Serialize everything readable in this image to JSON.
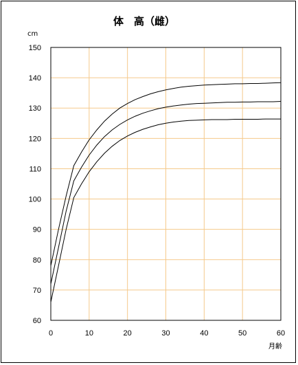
{
  "chart_data": {
    "type": "line",
    "title": "体　高（雌）",
    "ylabel": "cm",
    "xlabel": "月齢",
    "xlim": [
      0,
      60
    ],
    "ylim": [
      60,
      150
    ],
    "xticks": [
      "0",
      "10",
      "20",
      "30",
      "40",
      "50",
      "60"
    ],
    "yticks": [
      "60",
      "70",
      "80",
      "90",
      "100",
      "110",
      "120",
      "130",
      "140",
      "150"
    ],
    "grid": true,
    "legend": "none",
    "colors": {
      "grid": "#f5c98a",
      "line": "#000000",
      "frame": "#000000"
    },
    "x": [
      0,
      2,
      4,
      6,
      8,
      10,
      12,
      14,
      16,
      18,
      20,
      22,
      24,
      26,
      28,
      30,
      32,
      34,
      36,
      38,
      40,
      42,
      44,
      46,
      48,
      50,
      52,
      54,
      56,
      58,
      60
    ],
    "series": [
      {
        "values": [
          78.0,
          90.0,
          101.0,
          111.0,
          115.5,
          119.5,
          122.8,
          125.7,
          128.0,
          130.0,
          131.5,
          132.8,
          133.8,
          134.7,
          135.4,
          136.0,
          136.5,
          136.9,
          137.2,
          137.4,
          137.6,
          137.7,
          137.8,
          137.9,
          138.0,
          138.0,
          138.1,
          138.1,
          138.2,
          138.3,
          138.4
        ]
      },
      {
        "values": [
          72.0,
          84.0,
          96.0,
          106.0,
          110.5,
          114.5,
          117.8,
          120.6,
          122.8,
          124.6,
          126.1,
          127.3,
          128.3,
          129.1,
          129.8,
          130.3,
          130.7,
          131.0,
          131.3,
          131.5,
          131.6,
          131.7,
          131.8,
          131.9,
          131.9,
          132.0,
          132.0,
          132.1,
          132.1,
          132.1,
          132.2
        ]
      },
      {
        "values": [
          66.0,
          78.0,
          90.0,
          100.5,
          105.0,
          109.0,
          112.3,
          115.1,
          117.4,
          119.3,
          120.8,
          122.0,
          123.0,
          123.8,
          124.5,
          125.0,
          125.4,
          125.7,
          125.9,
          126.0,
          126.1,
          126.2,
          126.2,
          126.2,
          126.3,
          126.3,
          126.3,
          126.3,
          126.4,
          126.4,
          126.4
        ]
      }
    ]
  }
}
